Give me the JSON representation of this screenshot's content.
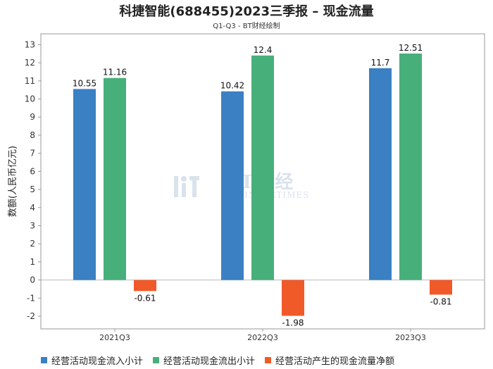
{
  "chart_data": {
    "type": "bar",
    "title": "科捷智能(688455)2023三季报 – 现金流量",
    "subtitle": "Q1-Q3 - BT财经绘制",
    "ylabel": "数额(人民币亿元)",
    "xlabel": "",
    "categories": [
      "2021Q3",
      "2022Q3",
      "2023Q3"
    ],
    "ylim": [
      -2.7,
      13.6
    ],
    "yticks": [
      -2,
      -1,
      0,
      1,
      2,
      3,
      4,
      5,
      6,
      7,
      8,
      9,
      10,
      11,
      12,
      13
    ],
    "grid": false,
    "legend_position": "bottom",
    "series": [
      {
        "name": "经营活动现金流入小计",
        "color": "#3a80c3",
        "values": [
          10.55,
          10.42,
          11.7
        ],
        "labels": [
          "10.55",
          "10.42",
          "11.7"
        ]
      },
      {
        "name": "经营活动现金流出小计",
        "color": "#47b07a",
        "values": [
          11.16,
          12.4,
          12.51
        ],
        "labels": [
          "11.16",
          "12.4",
          "12.51"
        ]
      },
      {
        "name": "经营活动产生的现金流量净额",
        "color": "#f05a28",
        "values": [
          -0.61,
          -1.98,
          -0.81
        ],
        "labels": [
          "-0.61",
          "-1.98",
          "-0.81"
        ]
      }
    ]
  },
  "watermark": {
    "main": "BT财经",
    "sub": "BUSINESSTIMES"
  }
}
